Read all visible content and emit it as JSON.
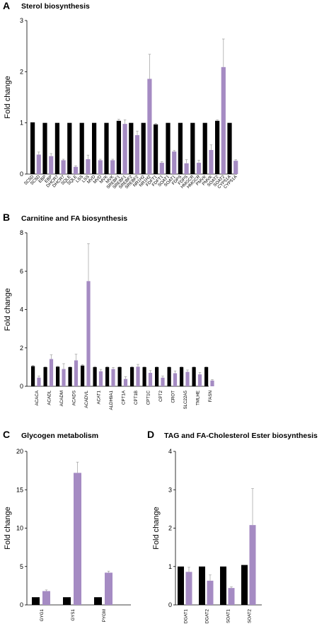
{
  "colors": {
    "control": "#000000",
    "treated": "#a58bc3",
    "error_bar": "#9e9e9e",
    "axis": "#000000"
  },
  "chart_data": [
    {
      "panel": "A",
      "title": "Sterol biosynthesis",
      "type": "bar",
      "ylabel": "Fold change",
      "ylim": [
        0,
        3
      ],
      "yticks": [
        "0",
        "1",
        "2",
        "3"
      ],
      "tick_values": [
        0,
        1,
        2,
        3
      ],
      "labels": [
        "SC5D",
        "SC5D",
        "EBP",
        "EBP",
        "DHCR7",
        "DHCR7",
        "SQLE",
        "SQLE",
        "LSS",
        "LSS",
        "MVD",
        "MVD",
        "MVK",
        "MVK",
        "SREBF1",
        "SREBF1",
        "SREBF2",
        "SREBF2",
        "NR1H2",
        "NR1H2",
        "FDFT1",
        "FDFT1",
        "SOAT1",
        "SOAT1",
        "FDPS",
        "FDPS",
        "HMGCR",
        "HMGCR",
        "PMVK",
        "PMVK",
        "SOAT2",
        "SOAT2",
        "CYP51A",
        "CYP51A"
      ],
      "bars": [
        {
          "v": 1.01,
          "g": "control",
          "e": 0
        },
        {
          "v": 0.38,
          "g": "treated",
          "e": 0.05
        },
        {
          "v": 1.0,
          "g": "control",
          "e": 0
        },
        {
          "v": 0.35,
          "g": "treated",
          "e": 0.05
        },
        {
          "v": 1.0,
          "g": "control",
          "e": 0
        },
        {
          "v": 0.27,
          "g": "treated",
          "e": 0.02
        },
        {
          "v": 1.0,
          "g": "control",
          "e": 0
        },
        {
          "v": 0.14,
          "g": "treated",
          "e": 0.02
        },
        {
          "v": 1.0,
          "g": "control",
          "e": 0
        },
        {
          "v": 0.29,
          "g": "treated",
          "e": 0.08
        },
        {
          "v": 1.0,
          "g": "control",
          "e": 0
        },
        {
          "v": 0.27,
          "g": "treated",
          "e": 0.02
        },
        {
          "v": 1.0,
          "g": "control",
          "e": 0
        },
        {
          "v": 0.27,
          "g": "treated",
          "e": 0.02
        },
        {
          "v": 1.04,
          "g": "control",
          "e": 0.03
        },
        {
          "v": 0.98,
          "g": "treated",
          "e": 0.08
        },
        {
          "v": 1.0,
          "g": "control",
          "e": 0
        },
        {
          "v": 0.76,
          "g": "treated",
          "e": 0.08
        },
        {
          "v": 1.0,
          "g": "control",
          "e": 0
        },
        {
          "v": 1.86,
          "g": "treated",
          "e": 0.48
        },
        {
          "v": 0.97,
          "g": "control",
          "e": 0.02
        },
        {
          "v": 0.22,
          "g": "treated",
          "e": 0.02
        },
        {
          "v": 1.0,
          "g": "control",
          "e": 0
        },
        {
          "v": 0.44,
          "g": "treated",
          "e": 0.02
        },
        {
          "v": 1.0,
          "g": "control",
          "e": 0
        },
        {
          "v": 0.21,
          "g": "treated",
          "e": 0.07
        },
        {
          "v": 1.0,
          "g": "control",
          "e": 0
        },
        {
          "v": 0.22,
          "g": "treated",
          "e": 0.05
        },
        {
          "v": 1.0,
          "g": "control",
          "e": 0
        },
        {
          "v": 0.47,
          "g": "treated",
          "e": 0.1
        },
        {
          "v": 1.04,
          "g": "control",
          "e": 0.02
        },
        {
          "v": 2.09,
          "g": "treated",
          "e": 0.55
        },
        {
          "v": 1.0,
          "g": "control",
          "e": 0
        },
        {
          "v": 0.26,
          "g": "treated",
          "e": 0.02
        }
      ]
    },
    {
      "panel": "B",
      "title": "Carnitine and FA biosynthesis",
      "type": "bar",
      "ylabel": "Fold change",
      "ylim": [
        0,
        8
      ],
      "yticks": [
        "0",
        "2",
        "4",
        "6",
        "8"
      ],
      "tick_values": [
        0,
        2,
        4,
        6,
        8
      ],
      "labels": [
        "ACACA",
        "ACADL",
        "ACADM",
        "ACADS",
        "ACADVL",
        "ACAT1",
        "ALDH9A1",
        "CPT1A",
        "CPT1B",
        "CPT1C",
        "CPT2",
        "CROT",
        "SLC22A5",
        "TMLHE",
        "FASN"
      ],
      "groups": [
        {
          "c": 1.05,
          "ce": 0.04,
          "t": 0.45,
          "te": 0.08
        },
        {
          "c": 1.0,
          "ce": 0.02,
          "t": 1.42,
          "te": 0.22
        },
        {
          "c": 1.02,
          "ce": 0.03,
          "t": 0.9,
          "te": 0.28
        },
        {
          "c": 1.0,
          "ce": 0.02,
          "t": 1.35,
          "te": 0.32
        },
        {
          "c": 1.08,
          "ce": 0.05,
          "t": 5.48,
          "te": 1.95
        },
        {
          "c": 1.0,
          "ce": 0.03,
          "t": 0.78,
          "te": 0.1
        },
        {
          "c": 1.0,
          "ce": 0.03,
          "t": 0.9,
          "te": 0.08
        },
        {
          "c": 1.0,
          "ce": 0.02,
          "t": 0.38,
          "te": 0.12
        },
        {
          "c": 1.0,
          "ce": 0.03,
          "t": 1.02,
          "te": 0.12
        },
        {
          "c": 1.0,
          "ce": 0.02,
          "t": 0.7,
          "te": 0.12
        },
        {
          "c": 1.0,
          "ce": 0.02,
          "t": 0.45,
          "te": 0.08
        },
        {
          "c": 1.0,
          "ce": 0.02,
          "t": 0.68,
          "te": 0.12
        },
        {
          "c": 1.0,
          "ce": 0.02,
          "t": 0.75,
          "te": 0.1
        },
        {
          "c": 1.0,
          "ce": 0.02,
          "t": 0.62,
          "te": 0.1
        },
        {
          "c": 1.0,
          "ce": 0.02,
          "t": 0.3,
          "te": 0.05
        }
      ]
    },
    {
      "panel": "C",
      "title": "Glycogen metabolism",
      "type": "bar",
      "ylabel": "Fold change",
      "ylim": [
        0,
        20
      ],
      "yticks": [
        "0",
        "5",
        "10",
        "15",
        "20"
      ],
      "tick_values": [
        0,
        5,
        10,
        15,
        20
      ],
      "labels": [
        "GYG1",
        "GYS1",
        "PYGM"
      ],
      "groups": [
        {
          "c": 1.0,
          "ce": 0,
          "t": 1.8,
          "te": 0.15
        },
        {
          "c": 1.0,
          "ce": 0,
          "t": 17.2,
          "te": 1.4
        },
        {
          "c": 1.0,
          "ce": 0,
          "t": 4.2,
          "te": 0.2
        }
      ]
    },
    {
      "panel": "D",
      "title": "TAG and FA-Cholesterol Ester biosynthesis",
      "type": "bar",
      "ylabel": "Fold change",
      "ylim": [
        0,
        4
      ],
      "yticks": [
        "0",
        "1",
        "2",
        "3",
        "4"
      ],
      "tick_values": [
        0,
        1,
        2,
        3,
        4
      ],
      "labels": [
        "DGAT1",
        "DGAT2",
        "SOAT1",
        "SOAT2"
      ],
      "groups": [
        {
          "c": 1.0,
          "ce": 0,
          "t": 0.86,
          "te": 0.12
        },
        {
          "c": 1.0,
          "ce": 0,
          "t": 0.63,
          "te": 0.15
        },
        {
          "c": 1.0,
          "ce": 0,
          "t": 0.44,
          "te": 0.03
        },
        {
          "c": 1.04,
          "ce": 0,
          "t": 2.08,
          "te": 0.95
        }
      ]
    }
  ]
}
